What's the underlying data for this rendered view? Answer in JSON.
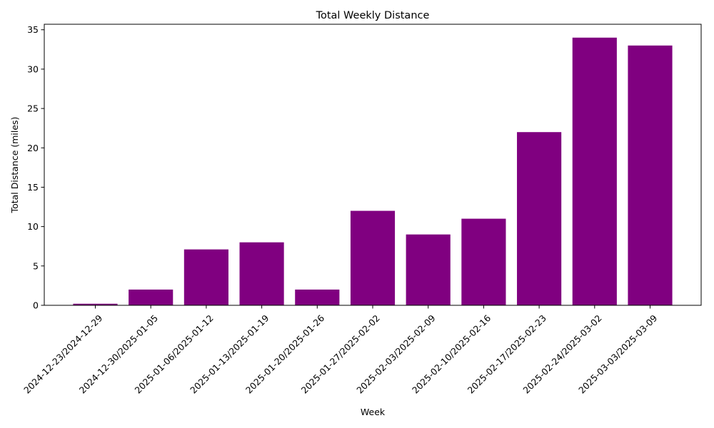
{
  "chart_data": {
    "type": "bar",
    "title": "Total Weekly Distance",
    "xlabel": "Week",
    "ylabel": "Total Distance (miles)",
    "categories": [
      "2024-12-23/2024-12-29",
      "2024-12-30/2025-01-05",
      "2025-01-06/2025-01-12",
      "2025-01-13/2025-01-19",
      "2025-01-20/2025-01-26",
      "2025-01-27/2025-02-02",
      "2025-02-03/2025-02-09",
      "2025-02-10/2025-02-16",
      "2025-02-17/2025-02-23",
      "2025-02-24/2025-03-02",
      "2025-03-03/2025-03-09"
    ],
    "values": [
      0.2,
      2,
      7.1,
      8,
      2,
      12,
      9,
      11,
      22,
      34,
      33
    ],
    "ylim": [
      0,
      35.7
    ],
    "yticks": [
      0,
      5,
      10,
      15,
      20,
      25,
      30,
      35
    ],
    "bar_color": "#800080",
    "grid": false,
    "legend": "none",
    "x_tick_rotation_deg": 45
  }
}
